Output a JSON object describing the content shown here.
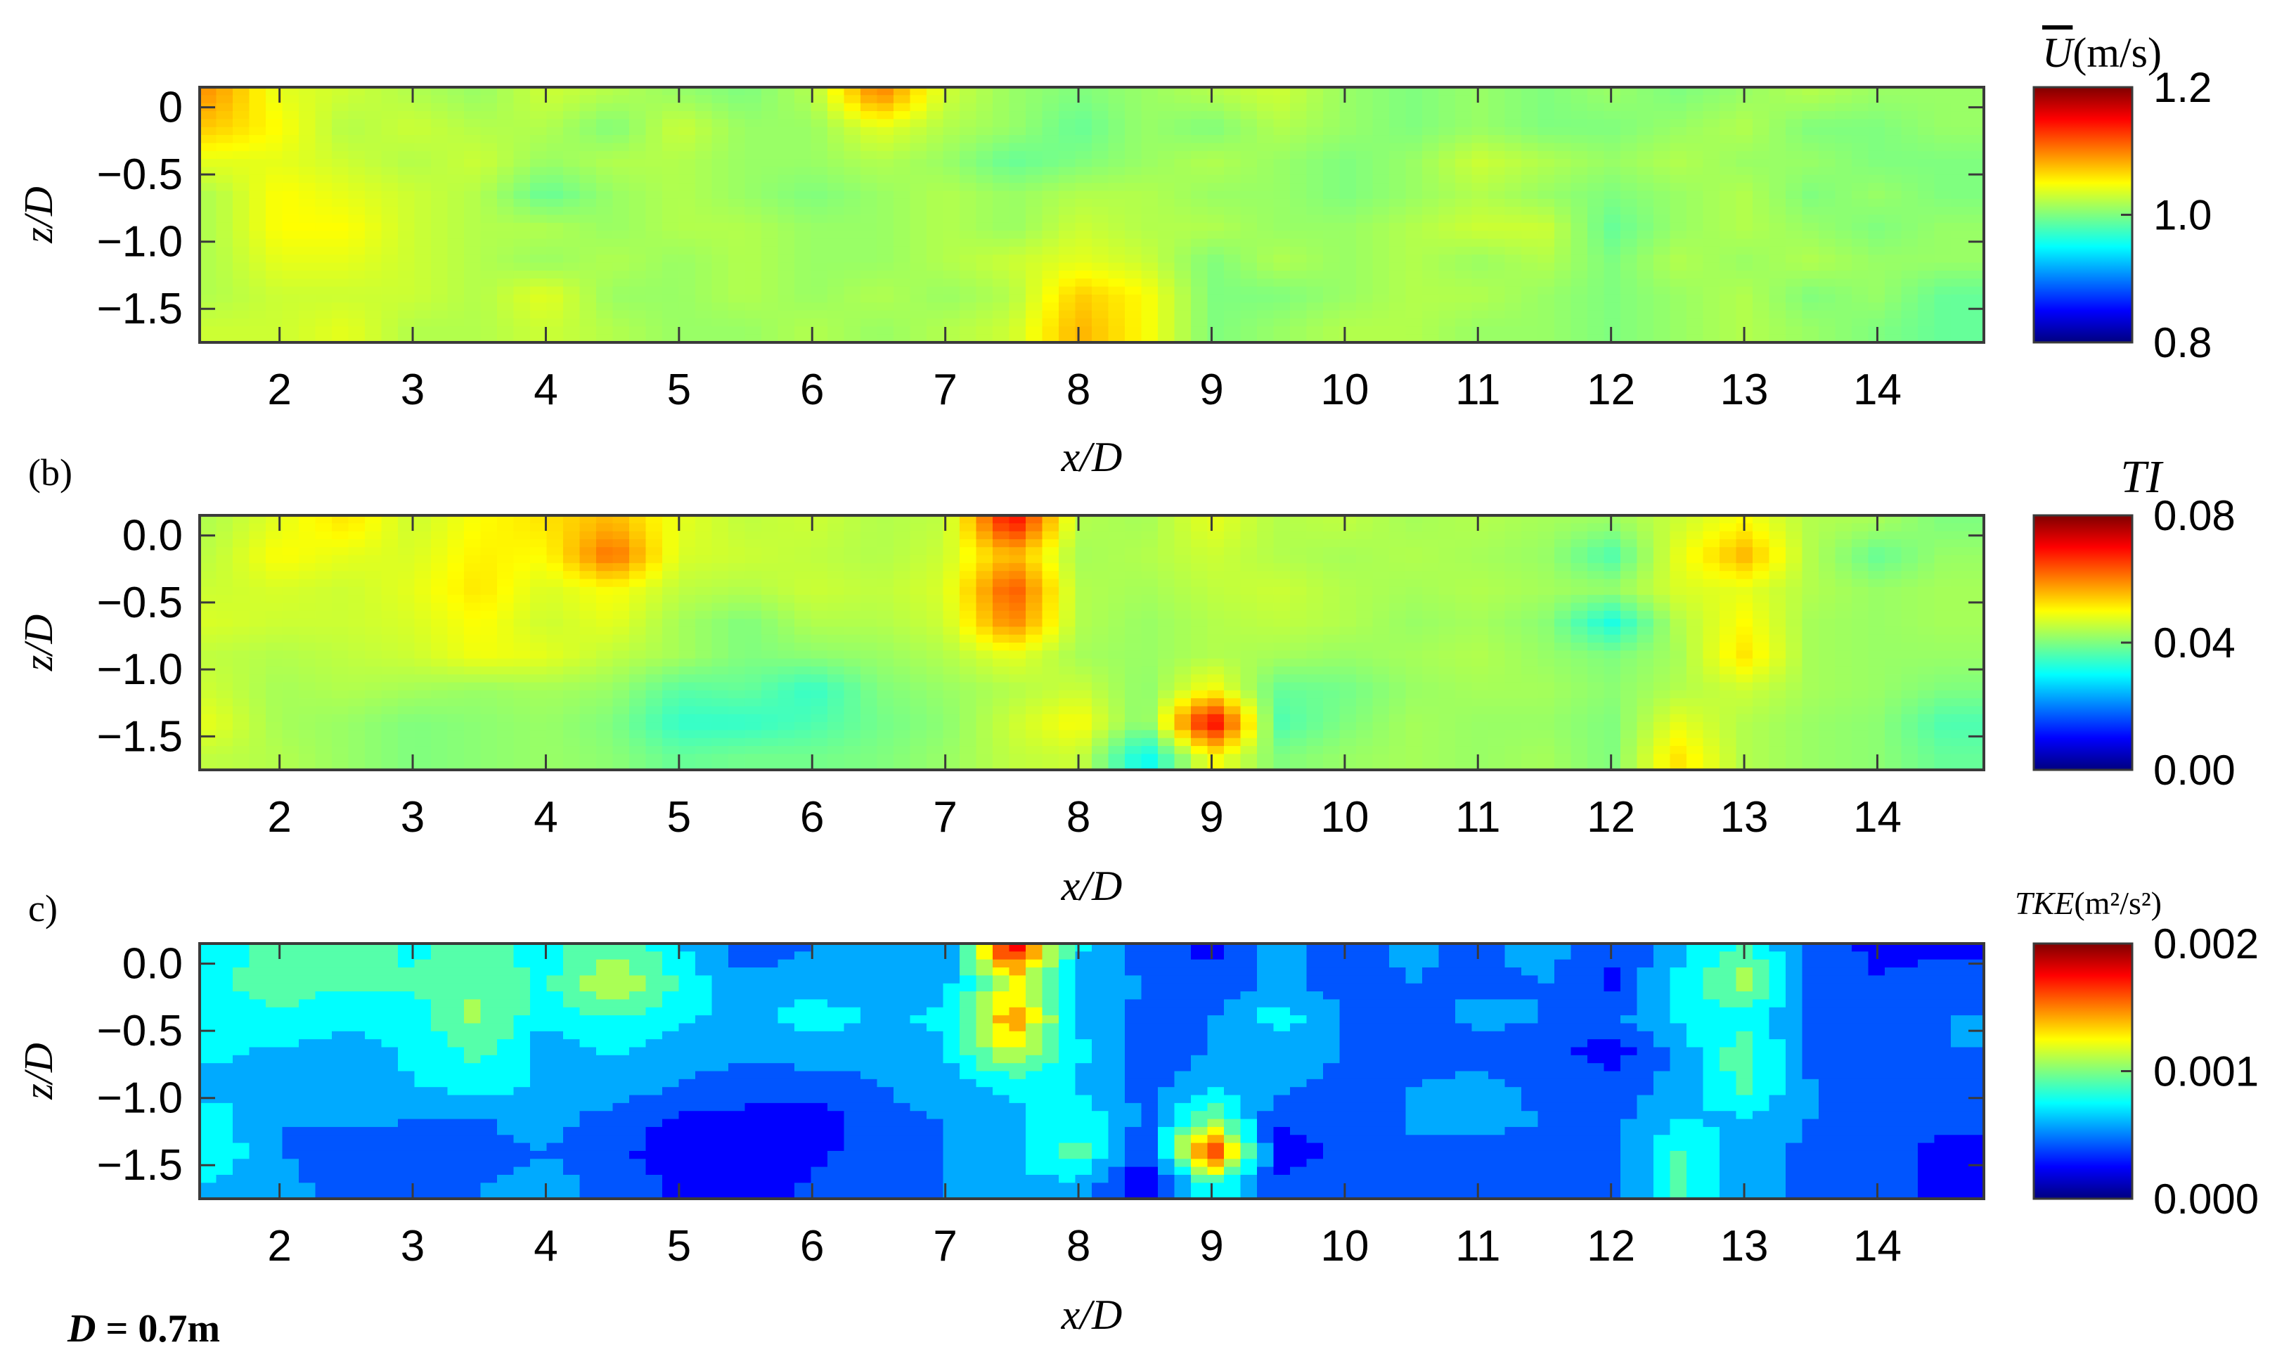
{
  "figure": {
    "footnote": "D = 0.7m",
    "footnote_symbol": "D",
    "footnote_value": " = 0.7m",
    "colormap": [
      "#00007f",
      "#0000ff",
      "#007fff",
      "#00ffff",
      "#7fff7f",
      "#ffff00",
      "#ff7f00",
      "#ff0000",
      "#7f0000"
    ],
    "frame_color": "#3a3a3a"
  },
  "chart_data": [
    {
      "type": "heatmap",
      "panel_label": "",
      "title": "",
      "colorbar_title": "Ū(m/s)",
      "colorbar_title_symbol": "U",
      "colorbar_title_unit": "(m/s)",
      "xlabel": "x/D",
      "ylabel": "z/D",
      "xlim": [
        1.4,
        14.8
      ],
      "ylim": [
        -1.75,
        0.15
      ],
      "xticks": [
        "2",
        "3",
        "4",
        "5",
        "6",
        "7",
        "8",
        "9",
        "10",
        "11",
        "12",
        "13",
        "14"
      ],
      "yticks": [
        "0",
        "−0.5",
        "−1.0",
        "−1.5"
      ],
      "ytick_values": [
        0,
        -0.5,
        -1.0,
        -1.5
      ],
      "clim": [
        0.8,
        1.2
      ],
      "colorbar_ticks": [
        "1.2",
        "1.0",
        "0.8"
      ],
      "colorbar_tick_values": [
        1.2,
        1.0,
        0.8
      ],
      "field": {
        "x": [
          1.5,
          2.0,
          2.5,
          3.0,
          3.5,
          4.0,
          4.5,
          5.0,
          5.5,
          6.0,
          6.5,
          7.0,
          7.5,
          8.0,
          8.5,
          9.0,
          9.5,
          10.0,
          10.5,
          11.0,
          11.5,
          12.0,
          12.5,
          13.0,
          13.5,
          14.0,
          14.5
        ],
        "z": [
          0.1,
          -0.15,
          -0.4,
          -0.65,
          -0.9,
          -1.15,
          -1.4,
          -1.65
        ],
        "values": [
          [
            1.09,
            1.04,
            1.03,
            1.02,
            1.01,
            1.03,
            1.02,
            1.01,
            1.0,
            1.02,
            1.1,
            1.03,
            1.01,
            1.0,
            1.01,
            1.02,
            1.03,
            1.01,
            1.0,
            1.01,
            1.0,
            1.01,
            1.0,
            1.01,
            1.02,
            1.01,
            1.01
          ],
          [
            1.07,
            1.05,
            1.02,
            1.03,
            1.02,
            1.02,
            1.0,
            1.03,
            1.01,
            1.01,
            1.04,
            1.02,
            1.01,
            0.99,
            1.01,
            1.0,
            1.02,
            1.01,
            1.0,
            1.01,
            1.0,
            1.0,
            1.01,
            1.02,
            1.0,
            1.0,
            1.01
          ],
          [
            1.04,
            1.04,
            1.03,
            1.02,
            1.03,
            1.01,
            1.02,
            1.02,
            1.01,
            1.01,
            1.02,
            1.01,
            0.99,
            1.0,
            1.01,
            1.02,
            1.01,
            1.0,
            1.01,
            1.03,
            1.02,
            1.01,
            1.02,
            1.01,
            1.01,
            1.0,
            1.0
          ],
          [
            1.02,
            1.05,
            1.04,
            1.03,
            1.02,
            0.99,
            1.01,
            1.02,
            1.01,
            1.0,
            1.01,
            1.02,
            1.01,
            1.02,
            1.02,
            1.01,
            1.01,
            1.0,
            1.01,
            1.02,
            1.01,
            1.0,
            1.01,
            1.02,
            1.0,
            1.01,
            1.0
          ],
          [
            1.02,
            1.05,
            1.05,
            1.03,
            1.02,
            1.02,
            1.01,
            1.02,
            1.02,
            1.01,
            1.01,
            1.02,
            1.01,
            1.03,
            1.02,
            1.02,
            1.01,
            1.01,
            1.02,
            1.03,
            1.03,
            0.99,
            1.01,
            1.02,
            1.01,
            1.0,
            1.01
          ],
          [
            1.02,
            1.04,
            1.04,
            1.03,
            1.02,
            1.01,
            1.02,
            1.01,
            1.02,
            1.01,
            1.01,
            1.02,
            1.03,
            1.04,
            1.03,
            1.0,
            1.02,
            1.01,
            1.02,
            1.01,
            1.02,
            1.0,
            1.02,
            1.01,
            1.02,
            1.01,
            1.01
          ],
          [
            1.02,
            1.03,
            1.03,
            1.03,
            1.02,
            1.04,
            1.01,
            1.01,
            1.02,
            1.01,
            1.02,
            1.01,
            1.02,
            1.07,
            1.05,
            1.0,
            1.0,
            1.01,
            1.02,
            1.02,
            1.01,
            1.0,
            1.01,
            1.02,
            1.0,
            1.01,
            0.99
          ],
          [
            1.03,
            1.03,
            1.04,
            1.02,
            1.02,
            1.03,
            1.02,
            1.01,
            1.01,
            1.02,
            1.01,
            1.02,
            1.03,
            1.08,
            1.05,
            1.0,
            1.01,
            1.02,
            1.02,
            1.01,
            1.01,
            1.0,
            1.01,
            1.02,
            1.01,
            1.0,
            0.99
          ]
        ]
      }
    },
    {
      "type": "heatmap",
      "panel_label": "(b)",
      "title": "",
      "colorbar_title": "TI",
      "xlabel": "x/D",
      "ylabel": "z/D",
      "xlim": [
        1.4,
        14.8
      ],
      "ylim": [
        -1.75,
        0.15
      ],
      "xticks": [
        "2",
        "3",
        "4",
        "5",
        "6",
        "7",
        "8",
        "9",
        "10",
        "11",
        "12",
        "13",
        "14"
      ],
      "yticks": [
        "0.0",
        "−0.5",
        "−1.0",
        "−1.5"
      ],
      "ytick_values": [
        0,
        -0.5,
        -1.0,
        -1.5
      ],
      "clim": [
        0.0,
        0.08
      ],
      "colorbar_ticks": [
        "0.08",
        "0.04",
        "0.00"
      ],
      "colorbar_tick_values": [
        0.08,
        0.04,
        0.0
      ],
      "field": {
        "x": [
          1.5,
          2.0,
          2.5,
          3.0,
          3.5,
          4.0,
          4.5,
          5.0,
          5.5,
          6.0,
          6.5,
          7.0,
          7.5,
          8.0,
          8.5,
          9.0,
          9.5,
          10.0,
          10.5,
          11.0,
          11.5,
          12.0,
          12.5,
          13.0,
          13.5,
          14.0,
          14.5
        ],
        "z": [
          0.1,
          -0.15,
          -0.4,
          -0.65,
          -0.9,
          -1.15,
          -1.4,
          -1.65
        ],
        "values": [
          [
            0.044,
            0.048,
            0.052,
            0.046,
            0.05,
            0.052,
            0.056,
            0.048,
            0.045,
            0.046,
            0.044,
            0.045,
            0.07,
            0.044,
            0.043,
            0.048,
            0.044,
            0.045,
            0.043,
            0.044,
            0.043,
            0.042,
            0.046,
            0.05,
            0.044,
            0.043,
            0.04
          ],
          [
            0.045,
            0.05,
            0.048,
            0.047,
            0.051,
            0.05,
            0.062,
            0.047,
            0.046,
            0.045,
            0.044,
            0.046,
            0.056,
            0.043,
            0.044,
            0.046,
            0.044,
            0.043,
            0.044,
            0.043,
            0.042,
            0.036,
            0.048,
            0.056,
            0.044,
            0.038,
            0.042
          ],
          [
            0.046,
            0.047,
            0.046,
            0.048,
            0.052,
            0.047,
            0.05,
            0.045,
            0.044,
            0.046,
            0.045,
            0.047,
            0.064,
            0.044,
            0.043,
            0.045,
            0.046,
            0.044,
            0.043,
            0.044,
            0.043,
            0.042,
            0.047,
            0.048,
            0.044,
            0.042,
            0.043
          ],
          [
            0.047,
            0.046,
            0.046,
            0.047,
            0.05,
            0.046,
            0.048,
            0.043,
            0.04,
            0.044,
            0.044,
            0.046,
            0.06,
            0.044,
            0.042,
            0.044,
            0.045,
            0.044,
            0.042,
            0.043,
            0.041,
            0.032,
            0.044,
            0.05,
            0.043,
            0.042,
            0.043
          ],
          [
            0.045,
            0.044,
            0.045,
            0.046,
            0.049,
            0.048,
            0.045,
            0.043,
            0.04,
            0.041,
            0.042,
            0.044,
            0.048,
            0.043,
            0.042,
            0.044,
            0.043,
            0.042,
            0.043,
            0.044,
            0.042,
            0.04,
            0.043,
            0.052,
            0.043,
            0.042,
            0.042
          ],
          [
            0.046,
            0.043,
            0.044,
            0.043,
            0.042,
            0.043,
            0.042,
            0.037,
            0.038,
            0.034,
            0.04,
            0.042,
            0.044,
            0.046,
            0.041,
            0.05,
            0.038,
            0.039,
            0.042,
            0.043,
            0.043,
            0.041,
            0.044,
            0.046,
            0.043,
            0.042,
            0.04
          ],
          [
            0.048,
            0.043,
            0.042,
            0.04,
            0.041,
            0.042,
            0.04,
            0.034,
            0.034,
            0.036,
            0.039,
            0.041,
            0.046,
            0.05,
            0.04,
            0.072,
            0.036,
            0.04,
            0.043,
            0.042,
            0.042,
            0.04,
            0.048,
            0.044,
            0.042,
            0.041,
            0.036
          ],
          [
            0.045,
            0.044,
            0.042,
            0.04,
            0.041,
            0.042,
            0.041,
            0.038,
            0.039,
            0.039,
            0.04,
            0.042,
            0.045,
            0.046,
            0.03,
            0.05,
            0.04,
            0.042,
            0.043,
            0.042,
            0.043,
            0.04,
            0.052,
            0.044,
            0.042,
            0.041,
            0.038
          ]
        ]
      }
    },
    {
      "type": "heatmap",
      "panel_label": "c)",
      "title": "",
      "colorbar_title": "TKE(m²/s²)",
      "colorbar_title_symbol": "TKE",
      "colorbar_title_unit": "(m²/s²)",
      "xlabel": "x/D",
      "ylabel": "z/D",
      "xlim": [
        1.4,
        14.8
      ],
      "ylim": [
        -1.75,
        0.15
      ],
      "xticks": [
        "2",
        "3",
        "4",
        "5",
        "6",
        "7",
        "8",
        "9",
        "10",
        "11",
        "12",
        "13",
        "14"
      ],
      "yticks": [
        "0.0",
        "−0.5",
        "−1.0",
        "−1.5"
      ],
      "ytick_values": [
        0,
        -0.5,
        -1.0,
        -1.5
      ],
      "clim": [
        0.0,
        0.002
      ],
      "colorbar_ticks": [
        "0.002",
        "0.001",
        "0.000"
      ],
      "colorbar_tick_values": [
        0.002,
        0.001,
        0.0
      ],
      "contour_levels": 12,
      "field": {
        "x": [
          1.5,
          2.0,
          2.5,
          3.0,
          3.5,
          4.0,
          4.5,
          5.0,
          5.5,
          6.0,
          6.5,
          7.0,
          7.5,
          8.0,
          8.5,
          9.0,
          9.5,
          10.0,
          10.5,
          11.0,
          11.5,
          12.0,
          12.5,
          13.0,
          13.5,
          14.0,
          14.5
        ],
        "z": [
          0.1,
          -0.15,
          -0.4,
          -0.65,
          -0.9,
          -1.15,
          -1.4,
          -1.65
        ],
        "values": [
          [
            0.00075,
            0.0009,
            0.00095,
            0.0008,
            0.0009,
            0.00075,
            0.001,
            0.0007,
            0.0004,
            0.0005,
            0.00065,
            0.00055,
            0.0018,
            0.0007,
            0.0004,
            0.0003,
            0.0006,
            0.0004,
            0.00055,
            0.00045,
            0.0006,
            0.00035,
            0.0006,
            0.0009,
            0.0004,
            0.0003,
            0.0003
          ],
          [
            0.0008,
            0.00095,
            0.00085,
            0.00085,
            0.001,
            0.0008,
            0.0012,
            0.0008,
            0.00055,
            0.0006,
            0.00055,
            0.0006,
            0.0012,
            0.0006,
            0.0005,
            0.00035,
            0.00055,
            0.0004,
            0.0005,
            0.00045,
            0.0005,
            0.0003,
            0.00075,
            0.0011,
            0.00045,
            0.00035,
            0.0004
          ],
          [
            0.00075,
            0.0008,
            0.0007,
            0.00075,
            0.00105,
            0.0007,
            0.00085,
            0.0007,
            0.0006,
            0.00075,
            0.00065,
            0.0007,
            0.0015,
            0.00065,
            0.00045,
            0.0005,
            0.00075,
            0.0005,
            0.00045,
            0.00055,
            0.0005,
            0.00045,
            0.0007,
            0.00075,
            0.0005,
            0.00045,
            0.0005
          ],
          [
            0.0007,
            0.00065,
            0.0006,
            0.0007,
            0.0009,
            0.00055,
            0.0007,
            0.0006,
            0.00055,
            0.0006,
            0.0006,
            0.00065,
            0.0012,
            0.0007,
            0.0004,
            0.0005,
            0.0006,
            0.0005,
            0.00035,
            0.00045,
            0.0004,
            0.00025,
            0.00055,
            0.00095,
            0.00045,
            0.0005,
            0.0005
          ],
          [
            0.0006,
            0.00055,
            0.0006,
            0.00065,
            0.00075,
            0.00065,
            0.0006,
            0.0005,
            0.0004,
            0.0004,
            0.0005,
            0.0006,
            0.00075,
            0.00065,
            0.00045,
            0.0006,
            0.00055,
            0.00045,
            0.0005,
            0.00055,
            0.00045,
            0.0004,
            0.00055,
            0.0009,
            0.0005,
            0.0005,
            0.00045
          ],
          [
            0.00075,
            0.0005,
            0.00055,
            0.0005,
            0.0005,
            0.00055,
            0.00045,
            0.0003,
            0.0003,
            0.00025,
            0.00045,
            0.0005,
            0.0006,
            0.0008,
            0.00045,
            0.001,
            0.00035,
            0.00045,
            0.0005,
            0.00055,
            0.0005,
            0.00045,
            0.00065,
            0.00065,
            0.0005,
            0.00045,
            0.0004
          ],
          [
            0.0008,
            0.0005,
            0.0004,
            0.0004,
            0.00045,
            0.0005,
            0.0004,
            0.0002,
            0.00025,
            0.0003,
            0.0004,
            0.0005,
            0.00065,
            0.0009,
            0.00035,
            0.0018,
            0.0002,
            0.0004,
            0.0005,
            0.00045,
            0.00045,
            0.0004,
            0.00085,
            0.0006,
            0.00045,
            0.00045,
            0.00025
          ],
          [
            0.00065,
            0.00055,
            0.00045,
            0.0004,
            0.0005,
            0.00055,
            0.00045,
            0.0003,
            0.0003,
            0.00035,
            0.0004,
            0.0005,
            0.0006,
            0.00065,
            0.00015,
            0.0008,
            0.0004,
            0.00045,
            0.0005,
            0.00045,
            0.0005,
            0.0004,
            0.0009,
            0.00055,
            0.00045,
            0.0004,
            0.0003
          ]
        ]
      }
    }
  ]
}
